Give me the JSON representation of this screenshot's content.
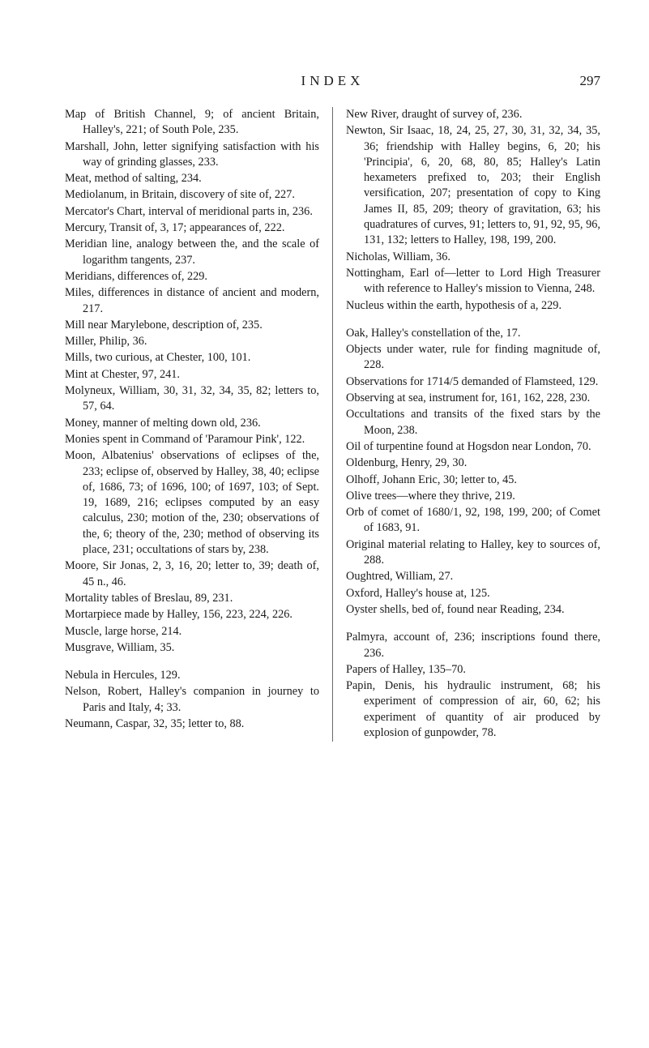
{
  "header": {
    "title": "INDEX",
    "page": "297"
  },
  "left": [
    "Map of British Channel, 9; of ancient Britain, Halley's, 221; of South Pole, 235.",
    "Marshall, John, letter signifying satisfaction with his way of grinding glasses, 233.",
    "Meat, method of salting, 234.",
    "Mediolanum, in Britain, discovery of site of, 227.",
    "Mercator's Chart, interval of meridional parts in, 236.",
    "Mercury, Transit of, 3, 17; appearances of, 222.",
    "Meridian line, analogy between the, and the scale of logarithm tangents, 237.",
    "Meridians, differences of, 229.",
    "Miles, differences in distance of ancient and modern, 217.",
    "Mill near Marylebone, description of, 235.",
    "Miller, Philip, 36.",
    "Mills, two curious, at Chester, 100, 101.",
    "Mint at Chester, 97, 241.",
    "Molyneux, William, 30, 31, 32, 34, 35, 82; letters to, 57, 64.",
    "Money, manner of melting down old, 236.",
    "Monies spent in Command of 'Paramour Pink', 122.",
    "Moon, Albatenius' observations of eclipses of the, 233; eclipse of, observed by Halley, 38, 40; eclipse of, 1686, 73; of 1696, 100; of 1697, 103; of Sept. 19, 1689, 216; eclipses computed by an easy calculus, 230; motion of the, 230; observations of the, 6; theory of the, 230; method of observing its place, 231; occultations of stars by, 238.",
    "Moore, Sir Jonas, 2, 3, 16, 20; letter to, 39; death of, 45 n., 46.",
    "Mortality tables of Breslau, 89, 231.",
    "Mortarpiece made by Halley, 156, 223, 224, 226.",
    "Muscle, large horse, 214.",
    "Musgrave, William, 35.",
    "",
    "Nebula in Hercules, 129.",
    "Nelson, Robert, Halley's companion in journey to Paris and Italy, 4; 33.",
    "Neumann, Caspar, 32, 35; letter to, 88."
  ],
  "right": [
    "New River, draught of survey of, 236.",
    "Newton, Sir Isaac, 18, 24, 25, 27, 30, 31, 32, 34, 35, 36; friendship with Halley begins, 6, 20; his 'Principia', 6, 20, 68, 80, 85; Halley's Latin hexameters prefixed to, 203; their English versification, 207; presentation of copy to King James II, 85, 209; theory of gravitation, 63; his quadratures of curves, 91; letters to, 91, 92, 95, 96, 131, 132; letters to Halley, 198, 199, 200.",
    "Nicholas, William, 36.",
    "Nottingham, Earl of—letter to Lord High Treasurer with reference to Halley's mission to Vienna, 248.",
    "Nucleus within the earth, hypothesis of a, 229.",
    "",
    "Oak, Halley's constellation of the, 17.",
    "Objects under water, rule for finding magnitude of, 228.",
    "Observations for 1714/5 demanded of Flamsteed, 129.",
    "Observing at sea, instrument for, 161, 162, 228, 230.",
    "Occultations and transits of the fixed stars by the Moon, 238.",
    "Oil of turpentine found at Hogsdon near London, 70.",
    "Oldenburg, Henry, 29, 30.",
    "Olhoff, Johann Eric, 30; letter to, 45.",
    "Olive trees—where they thrive, 219.",
    "Orb of comet of 1680/1, 92, 198, 199, 200; of Comet of 1683, 91.",
    "Original material relating to Halley, key to sources of, 288.",
    "Oughtred, William, 27.",
    "Oxford, Halley's house at, 125.",
    "Oyster shells, bed of, found near Reading, 234.",
    "",
    "Palmyra, account of, 236; inscriptions found there, 236.",
    "Papers of Halley, 135–70.",
    "Papin, Denis, his hydraulic instrument, 68; his experiment of compression of air, 60, 62; his experiment of quantity of air produced by explosion of gunpowder, 78."
  ]
}
